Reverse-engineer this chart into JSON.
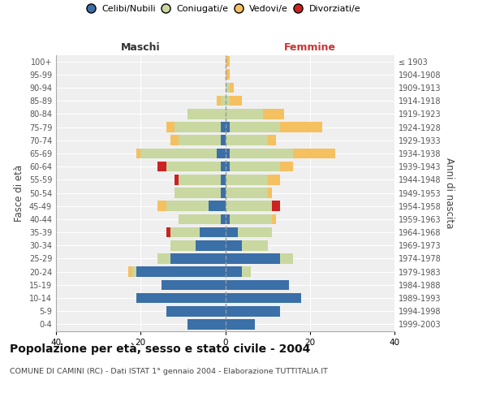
{
  "age_groups": [
    "0-4",
    "5-9",
    "10-14",
    "15-19",
    "20-24",
    "25-29",
    "30-34",
    "35-39",
    "40-44",
    "45-49",
    "50-54",
    "55-59",
    "60-64",
    "65-69",
    "70-74",
    "75-79",
    "80-84",
    "85-89",
    "90-94",
    "95-99",
    "100+"
  ],
  "birth_years": [
    "1999-2003",
    "1994-1998",
    "1989-1993",
    "1984-1988",
    "1979-1983",
    "1974-1978",
    "1969-1973",
    "1964-1968",
    "1959-1963",
    "1954-1958",
    "1949-1953",
    "1944-1948",
    "1939-1943",
    "1934-1938",
    "1929-1933",
    "1924-1928",
    "1919-1923",
    "1914-1918",
    "1909-1913",
    "1904-1908",
    "≤ 1903"
  ],
  "maschi": {
    "celibi": [
      9,
      14,
      21,
      15,
      21,
      13,
      7,
      6,
      1,
      4,
      1,
      1,
      1,
      2,
      1,
      1,
      0,
      0,
      0,
      0,
      0
    ],
    "coniugati": [
      0,
      0,
      0,
      0,
      1,
      3,
      6,
      7,
      10,
      10,
      11,
      10,
      13,
      18,
      10,
      11,
      9,
      1,
      0,
      0,
      0
    ],
    "vedovi": [
      0,
      0,
      0,
      0,
      1,
      0,
      0,
      0,
      0,
      2,
      0,
      0,
      0,
      1,
      2,
      2,
      0,
      1,
      0,
      0,
      0
    ],
    "divorziati": [
      0,
      0,
      0,
      0,
      0,
      0,
      0,
      1,
      0,
      0,
      0,
      1,
      2,
      0,
      0,
      0,
      0,
      0,
      0,
      0,
      0
    ]
  },
  "femmine": {
    "nubili": [
      7,
      13,
      18,
      15,
      4,
      13,
      4,
      3,
      1,
      0,
      0,
      0,
      1,
      1,
      0,
      1,
      0,
      0,
      0,
      0,
      0
    ],
    "coniugate": [
      0,
      0,
      0,
      0,
      2,
      3,
      6,
      8,
      10,
      11,
      10,
      10,
      12,
      15,
      10,
      12,
      9,
      1,
      1,
      0,
      0
    ],
    "vedove": [
      0,
      0,
      0,
      0,
      0,
      0,
      0,
      0,
      1,
      0,
      1,
      3,
      3,
      10,
      2,
      10,
      5,
      3,
      1,
      1,
      1
    ],
    "divorziate": [
      0,
      0,
      0,
      0,
      0,
      0,
      0,
      0,
      0,
      2,
      0,
      0,
      0,
      0,
      0,
      0,
      0,
      0,
      0,
      0,
      0
    ]
  },
  "colors": {
    "celibi": "#3a6fa8",
    "coniugati": "#c8d8a0",
    "vedovi": "#f5c060",
    "divorziati": "#cc2222"
  },
  "xlim": 40,
  "title": "Popolazione per età, sesso e stato civile - 2004",
  "subtitle": "COMUNE DI CAMINI (RC) - Dati ISTAT 1° gennaio 2004 - Elaborazione TUTTITALIA.IT",
  "ylabel_left": "Fasce di età",
  "ylabel_right": "Anni di nascita",
  "legend_labels": [
    "Celibi/Nubili",
    "Coniugati/e",
    "Vedovi/e",
    "Divorziati/e"
  ],
  "maschi_label": "Maschi",
  "femmine_label": "Femmine",
  "bg_color": "#ffffff",
  "plot_bg_color": "#efefef"
}
